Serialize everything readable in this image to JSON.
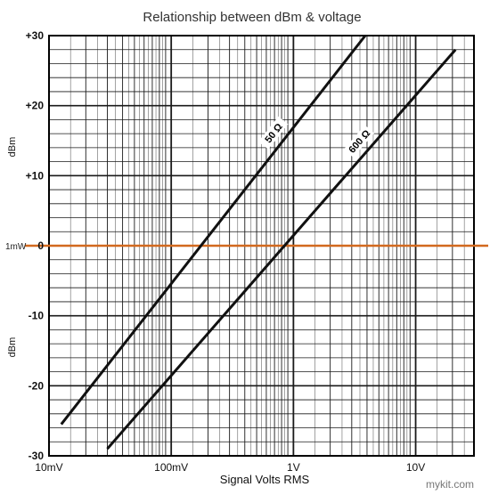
{
  "chart_data": {
    "type": "line",
    "title": "Relationship between dBm & voltage",
    "xlabel": "Signal Volts RMS",
    "ylabel": "dBm",
    "x_scale": "log",
    "xlim": [
      0.01,
      30
    ],
    "ylim": [
      -30,
      30
    ],
    "x_ticks": [
      {
        "value": 0.01,
        "label": "10mV"
      },
      {
        "value": 0.1,
        "label": "100mV"
      },
      {
        "value": 1,
        "label": "1V"
      },
      {
        "value": 10,
        "label": "10V"
      }
    ],
    "y_ticks": [
      {
        "value": 30,
        "label": "+30"
      },
      {
        "value": 20,
        "label": "+20"
      },
      {
        "value": 10,
        "label": "+10"
      },
      {
        "value": 0,
        "label": "0"
      },
      {
        "value": -10,
        "label": "-10"
      },
      {
        "value": -20,
        "label": "-20"
      },
      {
        "value": -30,
        "label": "-30"
      }
    ],
    "grid": true,
    "reference_line": {
      "y": 0,
      "label": "1mW",
      "color": "#d2691e"
    },
    "series": [
      {
        "name": "50 Ω",
        "x": [
          0.0126,
          3.87
        ],
        "y": [
          -25.5,
          30
        ]
      },
      {
        "name": "600 Ω",
        "x": [
          0.03,
          21.2
        ],
        "y": [
          -29,
          28
        ]
      }
    ],
    "line_color": "#111111",
    "grid_color": "#1a1a1a"
  },
  "credit": "mykit.com"
}
